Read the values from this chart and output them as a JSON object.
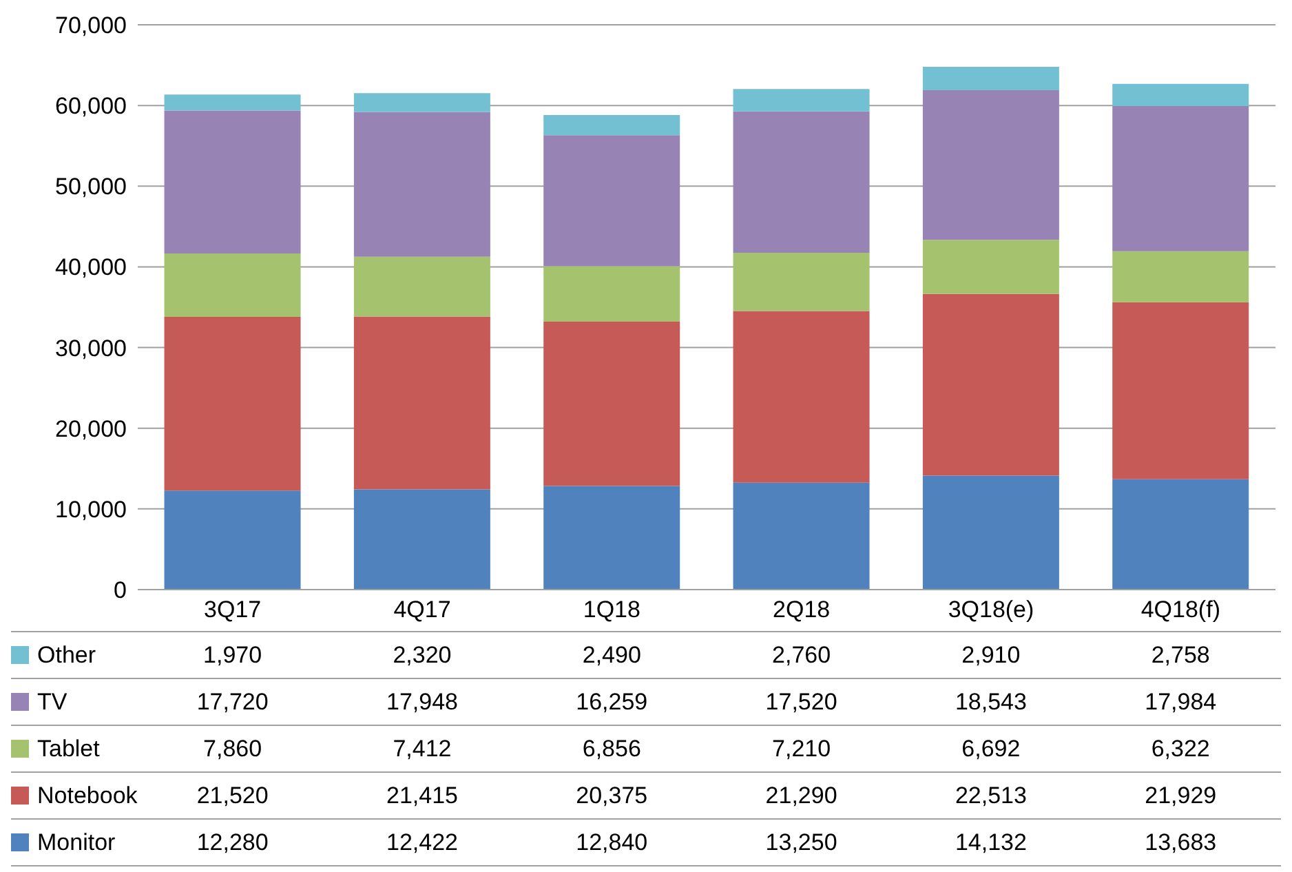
{
  "chart_data": {
    "type": "bar",
    "stacked": true,
    "categories": [
      "3Q17",
      "4Q17",
      "1Q18",
      "2Q18",
      "3Q18(e)",
      "4Q18(f)"
    ],
    "series": [
      {
        "name": "Monitor",
        "color": "#5082be",
        "values": [
          12280,
          12422,
          12840,
          13250,
          14132,
          13683
        ],
        "value_labels": [
          "12,280",
          "12,422",
          "12,840",
          "13,250",
          "14,132",
          "13,683"
        ]
      },
      {
        "name": "Notebook",
        "color": "#c55a57",
        "values": [
          21520,
          21415,
          20375,
          21290,
          22513,
          21929
        ],
        "value_labels": [
          "21,520",
          "21,415",
          "20,375",
          "21,290",
          "22,513",
          "21,929"
        ]
      },
      {
        "name": "Tablet",
        "color": "#a5c36f",
        "values": [
          7860,
          7412,
          6856,
          7210,
          6692,
          6322
        ],
        "value_labels": [
          "7,860",
          "7,412",
          "6,856",
          "7,210",
          "6,692",
          "6,322"
        ]
      },
      {
        "name": "TV",
        "color": "#9883b5",
        "values": [
          17720,
          17948,
          16259,
          17520,
          18543,
          17984
        ],
        "value_labels": [
          "17,720",
          "17,948",
          "16,259",
          "17,520",
          "18,543",
          "17,984"
        ]
      },
      {
        "name": "Other",
        "color": "#72c0d2",
        "values": [
          1970,
          2320,
          2490,
          2760,
          2910,
          2758
        ],
        "value_labels": [
          "1,970",
          "2,320",
          "2,490",
          "2,760",
          "2,910",
          "2,758"
        ]
      }
    ],
    "ylim": [
      0,
      70000
    ],
    "yticks": [
      0,
      {
        "value": 10000,
        "label": "10,000"
      },
      {
        "value": 20000,
        "label": "20,000"
      },
      {
        "value": 30000,
        "label": "30,000"
      },
      {
        "value": 40000,
        "label": "40,000"
      },
      {
        "value": 50000,
        "label": "50,000"
      },
      {
        "value": 60000,
        "label": "60,000"
      },
      {
        "value": 70000,
        "label": "70,000"
      }
    ],
    "grid": "y",
    "legend": "bottom"
  }
}
